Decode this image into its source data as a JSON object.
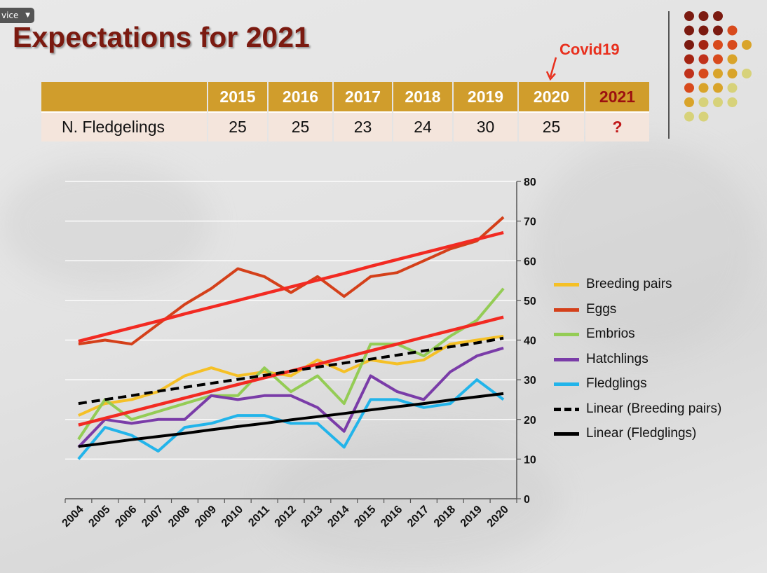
{
  "device_tag": "vice",
  "title": "Expectations for 2021",
  "annotation": {
    "text": "Covid19"
  },
  "table": {
    "header_years": [
      "2015",
      "2016",
      "2017",
      "2018",
      "2019",
      "2020",
      "2021"
    ],
    "row_label": "N. Fledgelings",
    "row_values": [
      "25",
      "25",
      "23",
      "24",
      "30",
      "25",
      "?"
    ]
  },
  "colors": {
    "title": "#7b1a10",
    "table_header": "#d09d2c",
    "table_row": "#f4e5dc",
    "trend_red": "#f22a22",
    "annotation": "#e8301e"
  },
  "decor_dots": {
    "rows": [
      [
        "#7b1a10",
        "#7b1a10",
        "#7b1a10"
      ],
      [
        "#7b1a10",
        "#7b1a10",
        "#7b1a10",
        "#d84a1c"
      ],
      [
        "#7b1a10",
        "#a42412",
        "#d84a1c",
        "#d84a1c",
        "#d9a42a"
      ],
      [
        "#a42412",
        "#c0311a",
        "#d84a1c",
        "#d9a42a"
      ],
      [
        "#c0311a",
        "#d84a1c",
        "#d9a42a",
        "#d9a42a",
        "#d7d27a"
      ],
      [
        "#d84a1c",
        "#d9a42a",
        "#d9a42a",
        "#d7d27a"
      ],
      [
        "#d9a42a",
        "#d7d27a",
        "#d7d27a",
        "#d7d27a"
      ],
      [
        "#d7d27a",
        "#d7d27a"
      ]
    ]
  },
  "chart_data": {
    "type": "line",
    "title": "",
    "xlabel": "",
    "ylabel": "",
    "categories": [
      "2004",
      "2005",
      "2006",
      "2007",
      "2008",
      "2009",
      "2010",
      "2011",
      "2012",
      "2013",
      "2014",
      "2015",
      "2016",
      "2017",
      "2018",
      "2019",
      "2020"
    ],
    "ylim": [
      0,
      80
    ],
    "yticks": [
      0,
      10,
      20,
      30,
      40,
      50,
      60,
      70,
      80
    ],
    "y_axis_side": "right",
    "grid": true,
    "legend_position": "right",
    "series": [
      {
        "name": "Breeding pairs",
        "color": "#f5c026",
        "style": "solid",
        "values": [
          21,
          24,
          25,
          27,
          31,
          33,
          31,
          32,
          31,
          35,
          32,
          35,
          34,
          35,
          39,
          40,
          41
        ]
      },
      {
        "name": "Eggs",
        "color": "#d4401a",
        "style": "solid",
        "values": [
          39,
          40,
          39,
          44,
          49,
          53,
          58,
          56,
          52,
          56,
          51,
          56,
          57,
          60,
          63,
          65,
          71
        ]
      },
      {
        "name": "Embrios",
        "color": "#94cc55",
        "style": "solid",
        "values": [
          15,
          25,
          20,
          22,
          24,
          26,
          26,
          33,
          27,
          31,
          24,
          39,
          39,
          36,
          41,
          45,
          53
        ]
      },
      {
        "name": "Hatchlings",
        "color": "#7a3ca8",
        "style": "solid",
        "values": [
          13,
          20,
          19,
          20,
          20,
          26,
          25,
          26,
          26,
          23,
          17,
          31,
          27,
          25,
          32,
          36,
          38
        ]
      },
      {
        "name": "Fledglings",
        "color": "#22b4ea",
        "style": "solid",
        "values": [
          10,
          18,
          16,
          12,
          18,
          19,
          21,
          21,
          19,
          19,
          13,
          25,
          25,
          23,
          24,
          30,
          25
        ]
      },
      {
        "name": "Linear (Breeding pairs)",
        "color": "#000000",
        "style": "dashed",
        "trendline": true,
        "values": [
          24.0,
          25.0,
          26.0,
          27.1,
          28.1,
          29.1,
          30.1,
          31.1,
          32.2,
          33.2,
          34.2,
          35.2,
          36.2,
          37.3,
          38.3,
          39.3,
          40.5
        ]
      },
      {
        "name": "Linear (Fledglings)",
        "color": "#000000",
        "style": "solid",
        "trendline": true,
        "values": [
          13.2,
          14.0,
          14.9,
          15.7,
          16.5,
          17.4,
          18.2,
          19.0,
          19.9,
          20.7,
          21.5,
          22.4,
          23.2,
          24.0,
          24.9,
          25.7,
          26.5
        ]
      }
    ],
    "annotation_trendlines": [
      {
        "color": "#f22a22",
        "values": [
          39.7,
          41.4,
          43.1,
          44.8,
          46.6,
          48.3,
          50.0,
          51.7,
          53.4,
          55.1,
          56.8,
          58.6,
          60.3,
          62.0,
          63.7,
          65.4,
          67.1
        ]
      },
      {
        "color": "#f22a22",
        "values": [
          18.6,
          20.3,
          22.0,
          23.7,
          25.4,
          27.1,
          28.8,
          30.5,
          32.2,
          33.9,
          35.6,
          37.3,
          39.0,
          40.7,
          42.4,
          44.1,
          45.8
        ]
      }
    ]
  }
}
